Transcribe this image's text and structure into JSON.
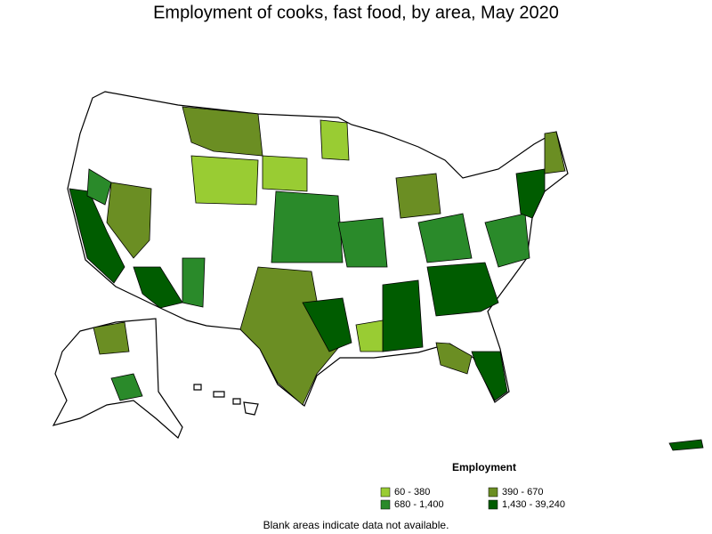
{
  "title": "Employment of cooks, fast food, by area, May 2020",
  "legend": {
    "title": "Employment",
    "items": [
      {
        "label": "60 - 380",
        "color": "#99cc33"
      },
      {
        "label": "390 - 670",
        "color": "#6b8e23"
      },
      {
        "label": "680 - 1,400",
        "color": "#2a8a2a"
      },
      {
        "label": "1,430 - 39,240",
        "color": "#005c00"
      }
    ]
  },
  "footnote": "Blank areas indicate data not available."
}
